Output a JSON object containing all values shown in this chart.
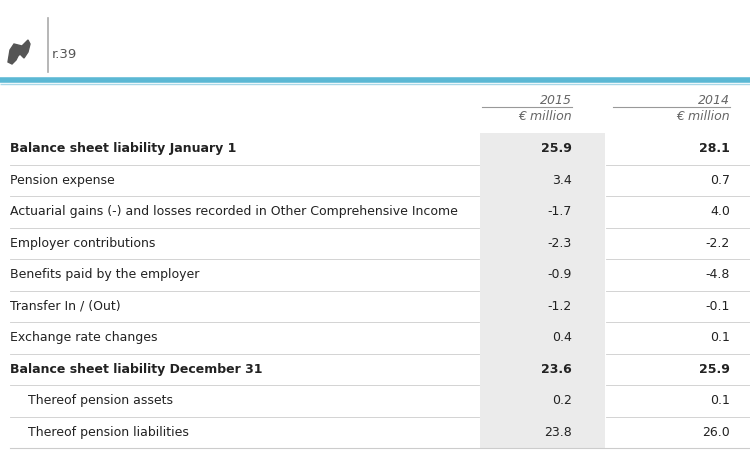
{
  "header_text": "r.39",
  "rows": [
    {
      "label": "Balance sheet liability January 1",
      "val2015": "25.9",
      "val2014": "28.1",
      "bold": true,
      "indent": false
    },
    {
      "label": "Pension expense",
      "val2015": "3.4",
      "val2014": "0.7",
      "bold": false,
      "indent": false
    },
    {
      "label": "Actuarial gains (-) and losses recorded in Other Comprehensive Income",
      "val2015": "-1.7",
      "val2014": "4.0",
      "bold": false,
      "indent": false
    },
    {
      "label": "Employer contributions",
      "val2015": "-2.3",
      "val2014": "-2.2",
      "bold": false,
      "indent": false
    },
    {
      "label": "Benefits paid by the employer",
      "val2015": "-0.9",
      "val2014": "-4.8",
      "bold": false,
      "indent": false
    },
    {
      "label": "Transfer In / (Out)",
      "val2015": "-1.2",
      "val2014": "-0.1",
      "bold": false,
      "indent": false
    },
    {
      "label": "Exchange rate changes",
      "val2015": "0.4",
      "val2014": "0.1",
      "bold": false,
      "indent": false
    },
    {
      "label": "Balance sheet liability December 31",
      "val2015": "23.6",
      "val2014": "25.9",
      "bold": true,
      "indent": false
    },
    {
      "label": "Thereof pension assets",
      "val2015": "0.2",
      "val2014": "0.1",
      "bold": false,
      "indent": true
    },
    {
      "label": "Thereof pension liabilities",
      "val2015": "23.8",
      "val2014": "26.0",
      "bold": false,
      "indent": true
    }
  ],
  "blue_line_color": "#5bb8d4",
  "blue_line_color2": "#a8d8e8",
  "gray_line_color": "#cccccc",
  "shade_color": "#ebebeb",
  "header_color": "#666666",
  "bg_color": "#ffffff",
  "logo_color": "#555555",
  "text_color": "#222222",
  "year_underline_color": "#999999"
}
